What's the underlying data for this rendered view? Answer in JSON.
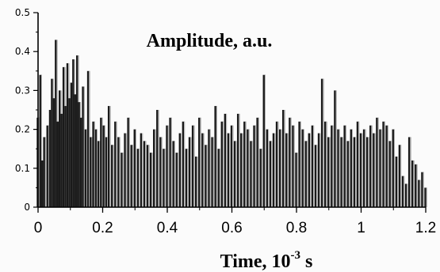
{
  "chart_data": {
    "type": "bar",
    "title": "Amplitude, a.u.",
    "xlabel": {
      "text": "Time, 10",
      "superscript": "-3",
      "suffix": " s"
    },
    "xlim": [
      0,
      1.2
    ],
    "ylim": [
      0,
      0.5
    ],
    "xticks": [
      "0",
      "0.2",
      "0.4",
      "0.6",
      "0.8",
      "1",
      "1.2"
    ],
    "yticks": [
      "0",
      "0.1",
      "0.2",
      "0.3",
      "0.4",
      "0.5"
    ],
    "grid": false,
    "legend": "none",
    "series": [
      {
        "values": [
          [
            0.0,
            0.23
          ],
          [
            0.008,
            0.34
          ],
          [
            0.014,
            0.12
          ],
          [
            0.02,
            0.18
          ],
          [
            0.03,
            0.21
          ],
          [
            0.038,
            0.25
          ],
          [
            0.044,
            0.33
          ],
          [
            0.05,
            0.28
          ],
          [
            0.056,
            0.43
          ],
          [
            0.062,
            0.22
          ],
          [
            0.068,
            0.3
          ],
          [
            0.074,
            0.24
          ],
          [
            0.08,
            0.36
          ],
          [
            0.086,
            0.26
          ],
          [
            0.092,
            0.37
          ],
          [
            0.098,
            0.28
          ],
          [
            0.104,
            0.32
          ],
          [
            0.11,
            0.38
          ],
          [
            0.116,
            0.29
          ],
          [
            0.122,
            0.39
          ],
          [
            0.128,
            0.27
          ],
          [
            0.134,
            0.23
          ],
          [
            0.14,
            0.31
          ],
          [
            0.148,
            0.2
          ],
          [
            0.156,
            0.35
          ],
          [
            0.164,
            0.18
          ],
          [
            0.172,
            0.22
          ],
          [
            0.18,
            0.2
          ],
          [
            0.188,
            0.17
          ],
          [
            0.196,
            0.23
          ],
          [
            0.204,
            0.21
          ],
          [
            0.212,
            0.18
          ],
          [
            0.22,
            0.26
          ],
          [
            0.23,
            0.16
          ],
          [
            0.24,
            0.22
          ],
          [
            0.25,
            0.18
          ],
          [
            0.26,
            0.14
          ],
          [
            0.27,
            0.19
          ],
          [
            0.28,
            0.23
          ],
          [
            0.29,
            0.16
          ],
          [
            0.3,
            0.2
          ],
          [
            0.31,
            0.15
          ],
          [
            0.32,
            0.19
          ],
          [
            0.33,
            0.17
          ],
          [
            0.34,
            0.16
          ],
          [
            0.35,
            0.14
          ],
          [
            0.36,
            0.2
          ],
          [
            0.37,
            0.25
          ],
          [
            0.38,
            0.18
          ],
          [
            0.39,
            0.15
          ],
          [
            0.4,
            0.21
          ],
          [
            0.41,
            0.23
          ],
          [
            0.42,
            0.17
          ],
          [
            0.43,
            0.14
          ],
          [
            0.44,
            0.19
          ],
          [
            0.45,
            0.22
          ],
          [
            0.46,
            0.15
          ],
          [
            0.47,
            0.18
          ],
          [
            0.48,
            0.21
          ],
          [
            0.49,
            0.13
          ],
          [
            0.5,
            0.23
          ],
          [
            0.51,
            0.19
          ],
          [
            0.52,
            0.16
          ],
          [
            0.53,
            0.2
          ],
          [
            0.54,
            0.18
          ],
          [
            0.55,
            0.26
          ],
          [
            0.56,
            0.15
          ],
          [
            0.57,
            0.22
          ],
          [
            0.58,
            0.24
          ],
          [
            0.59,
            0.19
          ],
          [
            0.6,
            0.21
          ],
          [
            0.61,
            0.17
          ],
          [
            0.62,
            0.24
          ],
          [
            0.63,
            0.19
          ],
          [
            0.64,
            0.22
          ],
          [
            0.65,
            0.2
          ],
          [
            0.66,
            0.17
          ],
          [
            0.67,
            0.21
          ],
          [
            0.68,
            0.23
          ],
          [
            0.69,
            0.15
          ],
          [
            0.7,
            0.34
          ],
          [
            0.71,
            0.2
          ],
          [
            0.72,
            0.17
          ],
          [
            0.73,
            0.19
          ],
          [
            0.74,
            0.22
          ],
          [
            0.75,
            0.2
          ],
          [
            0.76,
            0.25
          ],
          [
            0.77,
            0.19
          ],
          [
            0.78,
            0.23
          ],
          [
            0.79,
            0.21
          ],
          [
            0.8,
            0.14
          ],
          [
            0.81,
            0.22
          ],
          [
            0.82,
            0.2
          ],
          [
            0.83,
            0.17
          ],
          [
            0.84,
            0.19
          ],
          [
            0.85,
            0.21
          ],
          [
            0.86,
            0.16
          ],
          [
            0.87,
            0.19
          ],
          [
            0.88,
            0.33
          ],
          [
            0.89,
            0.22
          ],
          [
            0.9,
            0.18
          ],
          [
            0.91,
            0.21
          ],
          [
            0.92,
            0.3
          ],
          [
            0.93,
            0.2
          ],
          [
            0.94,
            0.18
          ],
          [
            0.95,
            0.21
          ],
          [
            0.96,
            0.17
          ],
          [
            0.97,
            0.2
          ],
          [
            0.98,
            0.18
          ],
          [
            0.99,
            0.22
          ],
          [
            1.0,
            0.19
          ],
          [
            1.01,
            0.2
          ],
          [
            1.02,
            0.18
          ],
          [
            1.03,
            0.21
          ],
          [
            1.04,
            0.19
          ],
          [
            1.05,
            0.23
          ],
          [
            1.06,
            0.2
          ],
          [
            1.07,
            0.22
          ],
          [
            1.08,
            0.21
          ],
          [
            1.09,
            0.17
          ],
          [
            1.1,
            0.2
          ],
          [
            1.11,
            0.13
          ],
          [
            1.12,
            0.16
          ],
          [
            1.13,
            0.08
          ],
          [
            1.14,
            0.06
          ],
          [
            1.15,
            0.18
          ],
          [
            1.16,
            0.12
          ],
          [
            1.17,
            0.11
          ],
          [
            1.18,
            0.07
          ],
          [
            1.19,
            0.09
          ],
          [
            1.2,
            0.05
          ]
        ]
      }
    ],
    "colors": {
      "bars": "#1a1a1a",
      "bar_highlight": "#ffffff",
      "axes": "#000000",
      "background": "#fbfbfb"
    }
  }
}
